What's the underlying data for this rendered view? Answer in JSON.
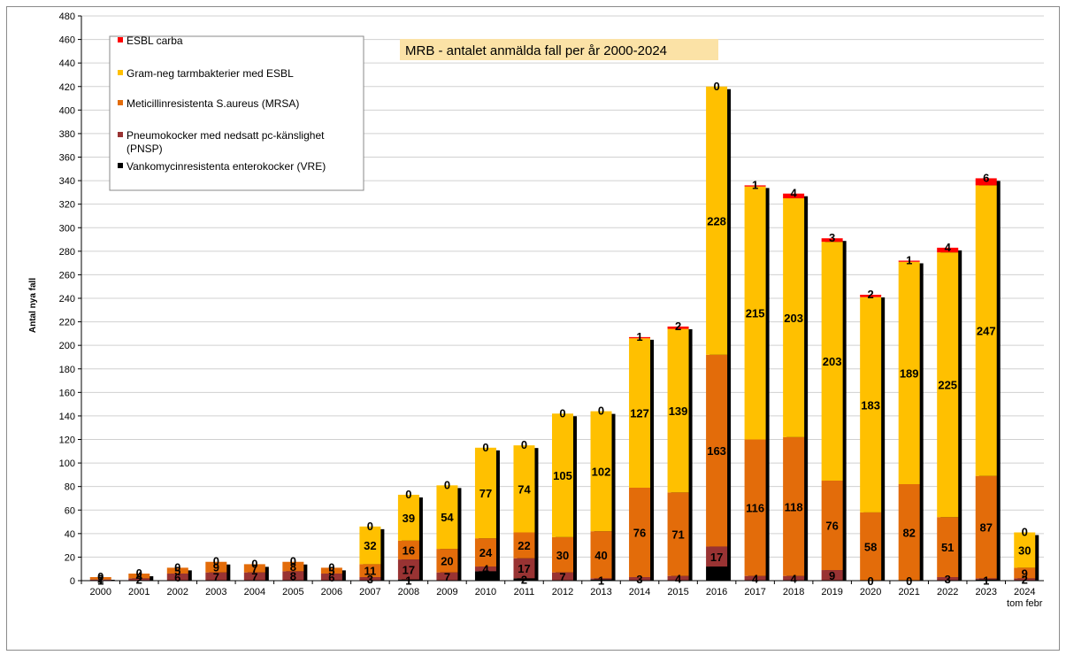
{
  "chart_data": {
    "type": "bar",
    "stacked": true,
    "title": "MRB - antalet anmälda fall per år 2000-2024",
    "xlabel": "",
    "ylabel": "Antal nya fall",
    "ylim": [
      0,
      480
    ],
    "ytick_step": 20,
    "grid": true,
    "legend_position": "top-left",
    "categories": [
      "2000",
      "2001",
      "2002",
      "2003",
      "2004",
      "2005",
      "2006",
      "2007",
      "2008",
      "2009",
      "2010",
      "2011",
      "2012",
      "2013",
      "2014",
      "2015",
      "2016",
      "2017",
      "2018",
      "2019",
      "2020",
      "2021",
      "2022",
      "2023",
      "2024"
    ],
    "category_sublabels": {
      "2024": "tom febr"
    },
    "series": [
      {
        "name": "Vankomycinresistenta enterokocker (VRE)",
        "color": "#000000",
        "values": [
          0,
          0,
          0,
          0,
          0,
          0,
          0,
          0,
          1,
          0,
          8,
          2,
          0,
          1,
          0,
          0,
          12,
          0,
          0,
          0,
          0,
          0,
          0,
          1,
          0
        ]
      },
      {
        "name": "Pneumokocker med nedsatt pc-känslighet (PNSP)",
        "color": "#993333",
        "values": [
          1,
          2,
          6,
          7,
          7,
          8,
          6,
          3,
          17,
          7,
          4,
          17,
          7,
          1,
          3,
          4,
          17,
          4,
          4,
          9,
          0,
          0,
          3,
          1,
          2
        ]
      },
      {
        "name": "Meticillinresistenta S.aureus (MRSA)",
        "color": "#E36C0A",
        "values": [
          2,
          4,
          5,
          9,
          7,
          8,
          5,
          11,
          16,
          20,
          24,
          22,
          30,
          40,
          76,
          71,
          163,
          116,
          118,
          76,
          58,
          82,
          51,
          87,
          9
        ]
      },
      {
        "name": "Gram-neg tarmbakterier med ESBL",
        "color": "#FFC000",
        "values": [
          0,
          0,
          0,
          0,
          0,
          0,
          0,
          32,
          39,
          54,
          77,
          74,
          105,
          102,
          127,
          139,
          228,
          215,
          203,
          203,
          183,
          189,
          225,
          247,
          30
        ]
      },
      {
        "name": "ESBL carba",
        "color": "#FF0000",
        "values": [
          0,
          0,
          0,
          0,
          0,
          0,
          0,
          0,
          0,
          0,
          0,
          0,
          0,
          0,
          1,
          2,
          0,
          1,
          4,
          3,
          2,
          1,
          4,
          6,
          0
        ]
      }
    ],
    "bar_labels": [
      [
        "",
        "1",
        "2",
        "",
        "0"
      ],
      [
        "",
        "2",
        "4",
        "",
        "0"
      ],
      [
        "",
        "6",
        "5",
        "",
        "0"
      ],
      [
        "",
        "7",
        "9",
        "",
        "0"
      ],
      [
        "",
        "7",
        "7",
        "",
        "0"
      ],
      [
        "",
        "8",
        "8",
        "",
        "0"
      ],
      [
        "",
        "6",
        "5",
        "",
        "0"
      ],
      [
        "",
        "3",
        "11",
        "32",
        "0"
      ],
      [
        "1",
        "17",
        "16",
        "39",
        "0"
      ],
      [
        "",
        "7",
        "20",
        "54",
        "0"
      ],
      [
        "8",
        "4",
        "24",
        "77",
        "0"
      ],
      [
        "2",
        "17",
        "22",
        "74",
        "0"
      ],
      [
        "",
        "7",
        "30",
        "105",
        "0"
      ],
      [
        "1",
        "",
        "40",
        "102",
        "0"
      ],
      [
        "",
        "3",
        "76",
        "127",
        "1"
      ],
      [
        "",
        "4",
        "71",
        "139",
        "2"
      ],
      [
        "12",
        "17",
        "163",
        "228",
        "0"
      ],
      [
        "",
        "4",
        "116",
        "215",
        "1"
      ],
      [
        "",
        "4",
        "118",
        "203",
        "4"
      ],
      [
        "",
        "9",
        "76",
        "203",
        "3"
      ],
      [
        "",
        "0",
        "58",
        "183",
        "2"
      ],
      [
        "",
        "0",
        "82",
        "189",
        "1"
      ],
      [
        "",
        "3",
        "51",
        "225",
        "4"
      ],
      [
        "1",
        "",
        "87",
        "247",
        "6"
      ],
      [
        "",
        "2",
        "9",
        "30",
        "0"
      ]
    ],
    "legend_order": [
      "ESBL carba",
      "Gram-neg tarmbakterier med ESBL",
      "Meticillinresistenta S.aureus (MRSA)",
      "Pneumokocker med nedsatt pc-känslighet (PNSP)",
      "Vankomycinresistenta enterokocker (VRE)"
    ]
  }
}
